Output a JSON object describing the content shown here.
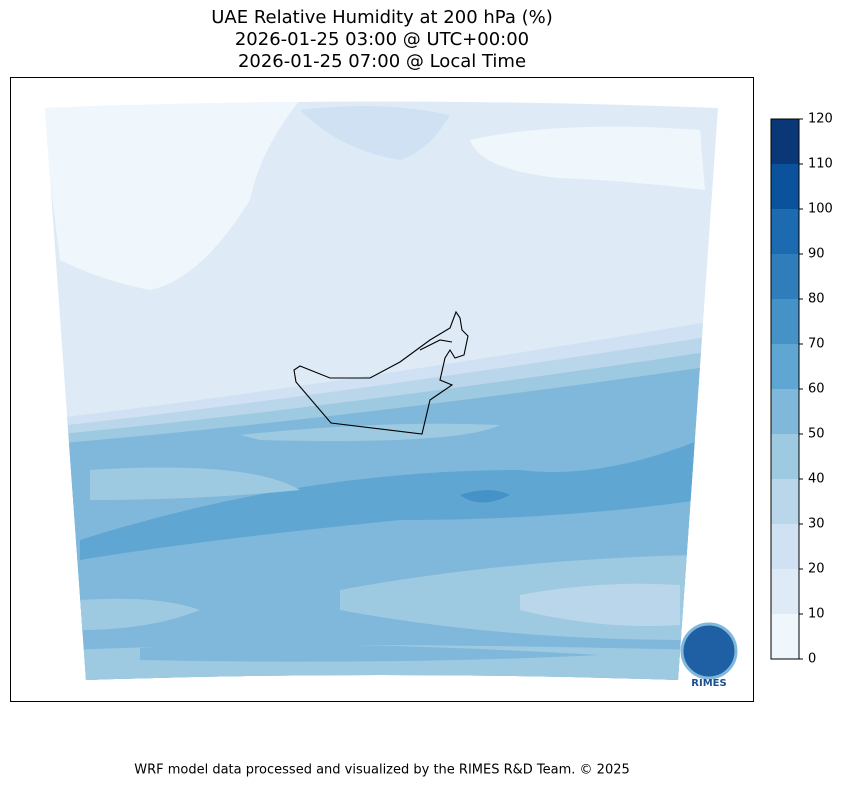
{
  "chart_data": {
    "type": "contour-map",
    "title": [
      "UAE Relative Humidity at 200 hPa (%)",
      "2026-01-25 03:00 @ UTC+00:00",
      "2026-01-25 07:00 @ Local Time"
    ],
    "colorbar": {
      "lim": [
        0,
        120
      ],
      "ticks": [
        0,
        10,
        20,
        30,
        40,
        50,
        60,
        70,
        80,
        90,
        100,
        110,
        120
      ],
      "colors": [
        "#eff6fc",
        "#deebf7",
        "#cfe1f2",
        "#bad6eb",
        "#9ecae1",
        "#7fb8da",
        "#60a6d2",
        "#4592c6",
        "#2f7ebb",
        "#1c6aaf",
        "#0b529d",
        "#0a3877"
      ]
    },
    "logo_text": "RIMES",
    "footer": "WRF model data processed and visualized by the RIMES R&D Team. © 2025"
  }
}
